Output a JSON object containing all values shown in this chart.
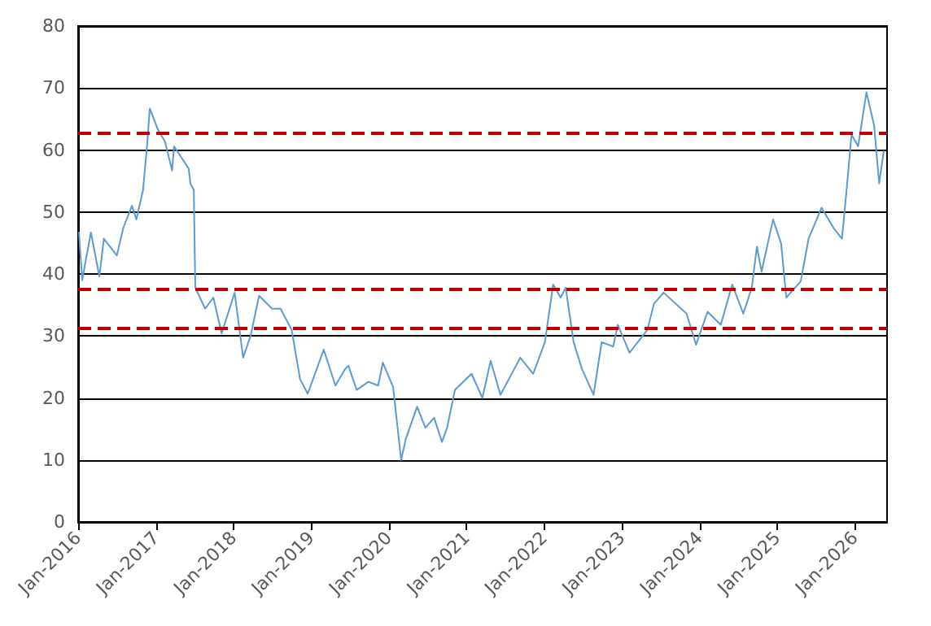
{
  "chart_data": {
    "type": "line",
    "line_style": "solid",
    "marker": "none",
    "grid": "y",
    "xlim": [
      "2016-01-01",
      "2026-06-01"
    ],
    "xticks": [
      {
        "value": "2016-01-01",
        "label": "Jan-2016"
      },
      {
        "value": "2017-01-01",
        "label": "Jan-2017"
      },
      {
        "value": "2018-01-01",
        "label": "Jan-2018"
      },
      {
        "value": "2019-01-01",
        "label": "Jan-2019"
      },
      {
        "value": "2020-01-01",
        "label": "Jan-2020"
      },
      {
        "value": "2021-01-01",
        "label": "Jan-2021"
      },
      {
        "value": "2022-01-01",
        "label": "Jan-2022"
      },
      {
        "value": "2023-01-01",
        "label": "Jan-2023"
      },
      {
        "value": "2024-01-01",
        "label": "Jan-2024"
      },
      {
        "value": "2025-01-01",
        "label": "Jan-2025"
      },
      {
        "value": "2026-01-01",
        "label": "Jan-2026"
      }
    ],
    "ylim": [
      0,
      80
    ],
    "yticks": [
      0,
      10,
      20,
      30,
      40,
      50,
      60,
      70,
      80
    ],
    "x": [
      "2016-01-05",
      "2016-01-20",
      "2016-03-01",
      "2016-04-10",
      "2016-05-01",
      "2016-07-01",
      "2016-08-01",
      "2016-09-10",
      "2016-10-01",
      "2016-11-01",
      "2016-11-20",
      "2016-12-03",
      "2017-01-10",
      "2017-02-12",
      "2017-03-18",
      "2017-03-27",
      "2017-06-04",
      "2017-06-12",
      "2017-06-28",
      "2017-07-05",
      "2017-08-20",
      "2017-09-28",
      "2017-11-06",
      "2018-01-06",
      "2018-02-15",
      "2018-03-22",
      "2018-05-01",
      "2018-07-01",
      "2018-08-10",
      "2018-10-01",
      "2018-11-10",
      "2018-12-16",
      "2019-03-01",
      "2019-04-25",
      "2019-06-10",
      "2019-06-25",
      "2019-08-03",
      "2019-09-27",
      "2019-11-12",
      "2019-12-04",
      "2020-01-21",
      "2020-02-28",
      "2020-03-21",
      "2020-05-13",
      "2020-06-21",
      "2020-08-01",
      "2020-09-07",
      "2020-10-01",
      "2020-11-07",
      "2021-01-24",
      "2021-03-16",
      "2021-04-24",
      "2021-06-09",
      "2021-09-10",
      "2021-11-10",
      "2022-01-04",
      "2022-02-12",
      "2022-03-19",
      "2022-04-12",
      "2022-05-19",
      "2022-06-27",
      "2022-08-21",
      "2022-09-28",
      "2022-11-21",
      "2022-12-13",
      "2023-02-06",
      "2023-05-01",
      "2023-06-01",
      "2023-07-16",
      "2023-11-01",
      "2023-12-16",
      "2024-02-08",
      "2024-04-10",
      "2024-06-03",
      "2024-07-25",
      "2024-09-03",
      "2024-09-27",
      "2024-10-19",
      "2024-12-12",
      "2025-01-19",
      "2025-02-12",
      "2025-04-21",
      "2025-05-28",
      "2025-07-28",
      "2025-09-21",
      "2025-11-01",
      "2025-11-22",
      "2025-12-16",
      "2026-01-16",
      "2026-02-24",
      "2026-04-01",
      "2026-04-25",
      "2026-05-16"
    ],
    "series": [
      {
        "color": "#5b9bd5",
        "values": [
          46.7,
          39,
          46.7,
          39.6,
          45.7,
          43,
          47.5,
          51,
          48.8,
          53.5,
          60.6,
          66.7,
          63.3,
          61.4,
          56.7,
          60.6,
          57,
          54.6,
          53.5,
          37.8,
          34.4,
          36.2,
          30.4,
          37,
          26.5,
          30,
          36.5,
          34.4,
          34.4,
          31,
          23,
          20.7,
          27.8,
          22,
          24.7,
          25.2,
          21.3,
          22.6,
          22,
          25.7,
          21.8,
          10,
          13.4,
          18.6,
          15.2,
          16.8,
          12.9,
          15.2,
          21.3,
          23.9,
          20,
          26,
          20.5,
          26.5,
          23.9,
          29,
          38.3,
          36.2,
          37.8,
          29,
          24.7,
          20.5,
          29,
          28.3,
          31.8,
          27.3,
          31,
          35.2,
          37,
          33.6,
          28.6,
          33.9,
          31.8,
          38.3,
          33.6,
          37.8,
          44.4,
          40.4,
          48.8,
          44.9,
          36.2,
          38.8,
          45.7,
          50.7,
          47.5,
          45.7,
          53.3,
          62.5,
          60.6,
          69.3,
          64,
          54.6,
          59.8
        ]
      }
    ],
    "ref_lines": [
      {
        "axis": "y",
        "value": 62.7,
        "color": "#c00000",
        "line_style": "dashed"
      },
      {
        "axis": "y",
        "value": 37.6,
        "color": "#c00000",
        "line_style": "dashed"
      },
      {
        "axis": "y",
        "value": 31.2,
        "color": "#c00000",
        "line_style": "dashed"
      }
    ]
  }
}
